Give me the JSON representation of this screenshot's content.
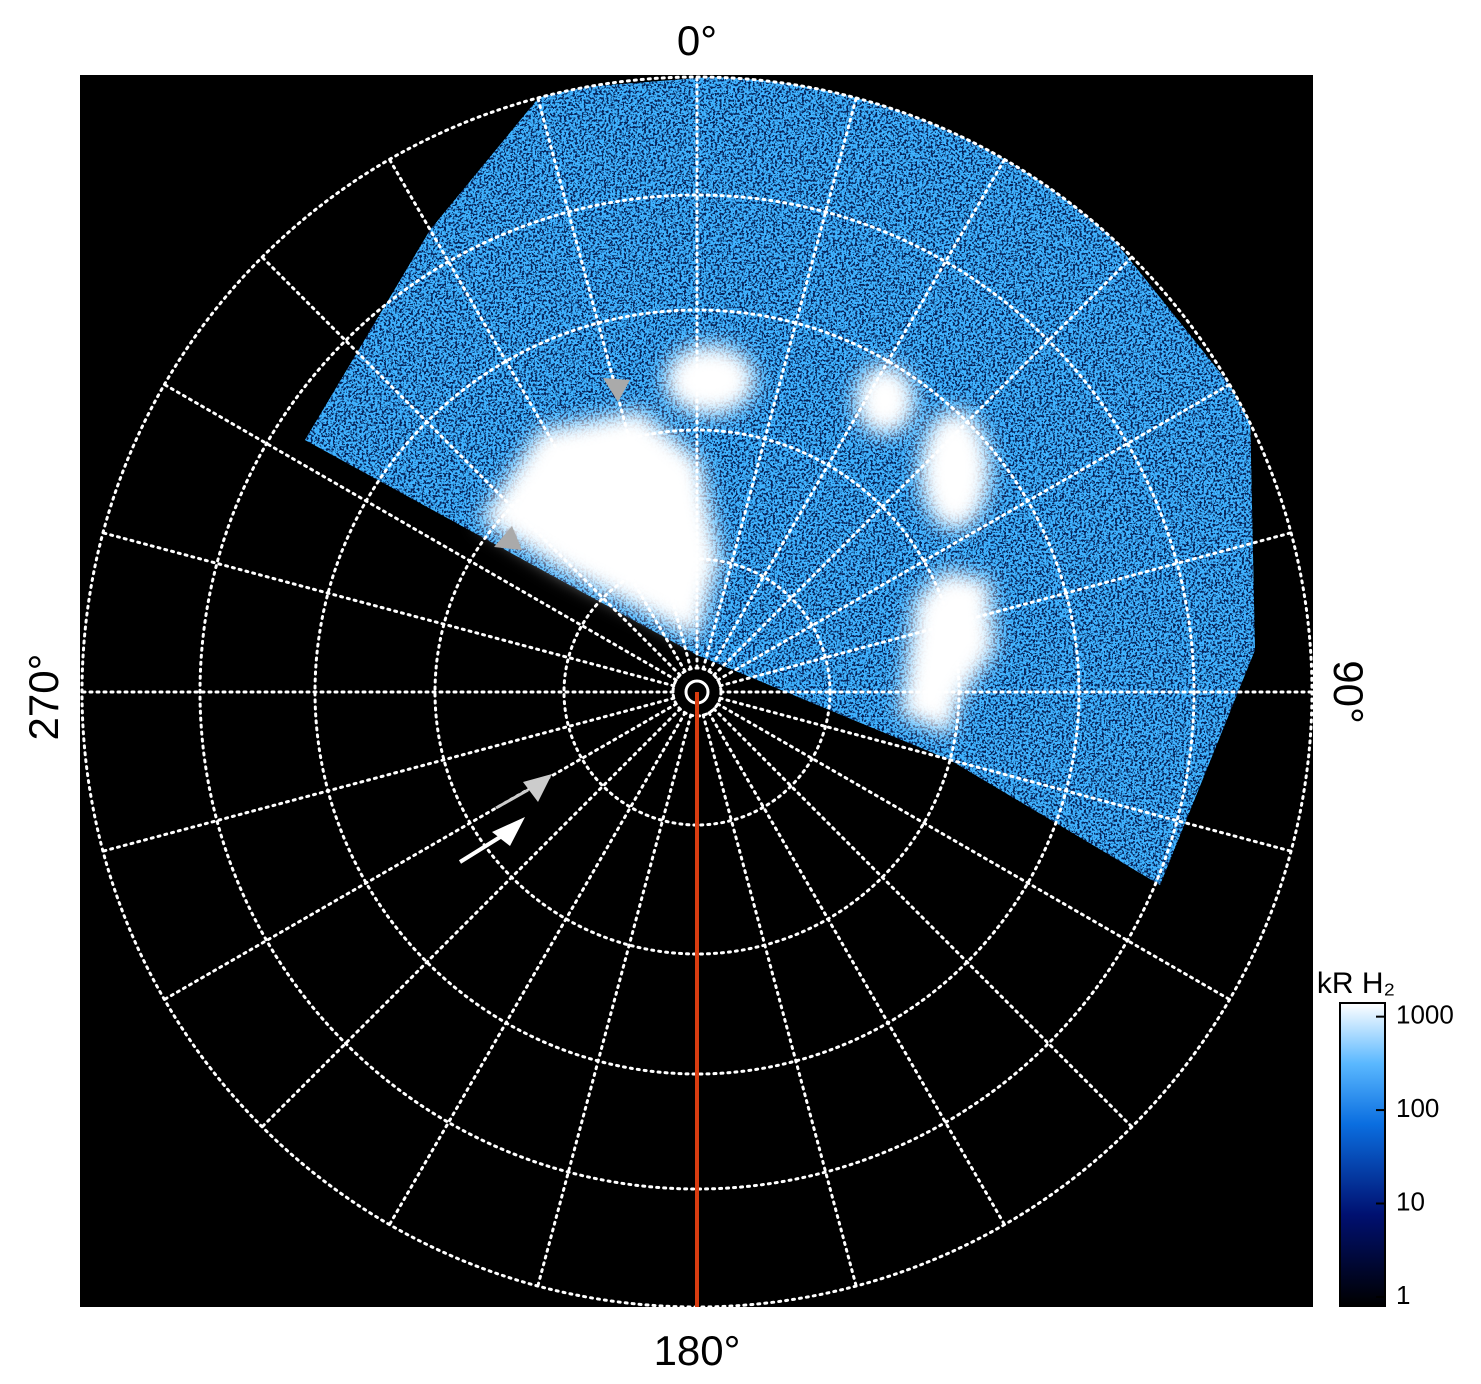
{
  "labels": {
    "top": "0°",
    "right": "90°",
    "bottom": "180°",
    "left": "270°"
  },
  "colorbar": {
    "title": "kR H₂",
    "scale": "log",
    "range": [
      0.8,
      1400
    ],
    "ticks": [
      1,
      10,
      100,
      1000
    ]
  }
}
